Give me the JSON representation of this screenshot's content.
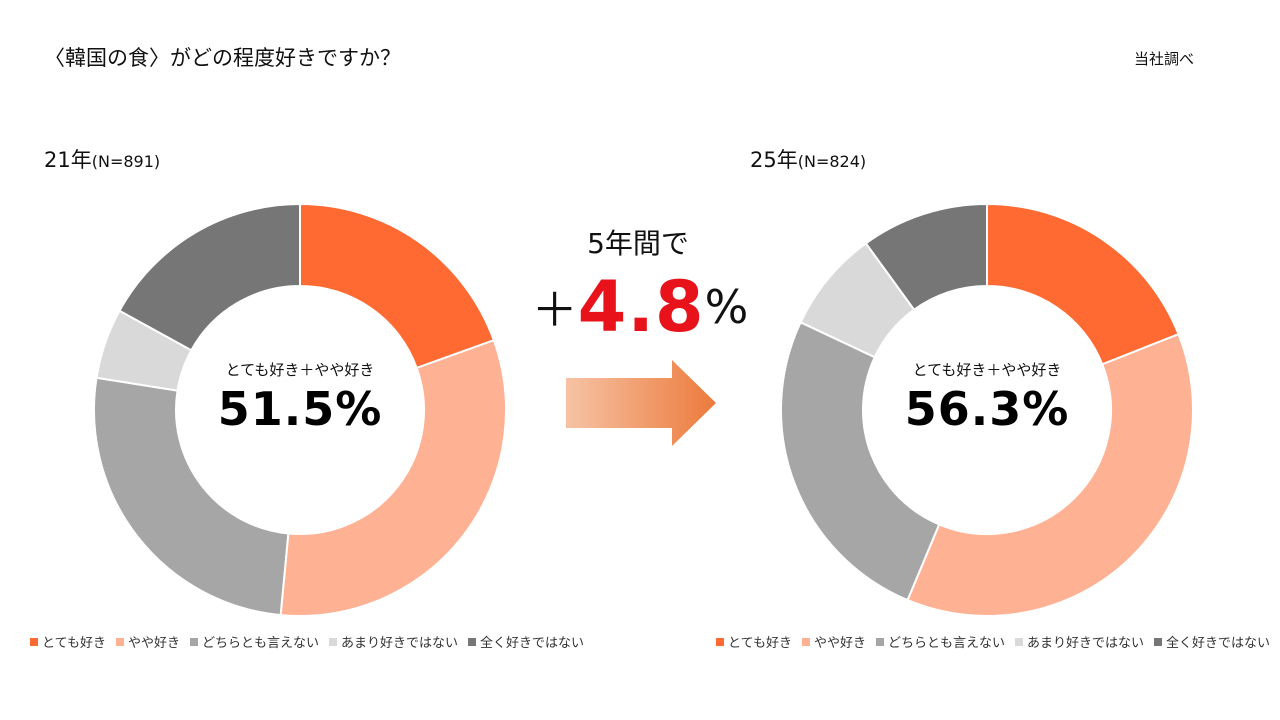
{
  "title": "〈韓国の食〉がどの程度好きですか？",
  "source": "当社調べ",
  "comparison": {
    "label": "5年間で",
    "sign": "＋",
    "value": "4.8",
    "unit": "%"
  },
  "chart_data": [
    {
      "type": "pie",
      "year_label": "21年",
      "n_label": "(N=891)",
      "center_caption": "とても好き＋やや好き",
      "center_value": "51.5%",
      "categories": [
        "とても好き",
        "やや好き",
        "どちらとも言えない",
        "あまり好きではない",
        "全く好きではない"
      ],
      "values": [
        19.5,
        32.0,
        26.0,
        5.5,
        17.0
      ],
      "colors": [
        "#ff6a33",
        "#ffb194",
        "#a6a6a6",
        "#d9d9d9",
        "#767676"
      ]
    },
    {
      "type": "pie",
      "year_label": "25年",
      "n_label": "(N=824)",
      "center_caption": "とても好き＋やや好き",
      "center_value": "56.3%",
      "categories": [
        "とても好き",
        "やや好き",
        "どちらとも言えない",
        "あまり好きではない",
        "全く好きではない"
      ],
      "values": [
        19.0,
        37.3,
        25.7,
        8.0,
        10.0
      ],
      "colors": [
        "#ff6a33",
        "#ffb194",
        "#a6a6a6",
        "#d9d9d9",
        "#767676"
      ]
    }
  ]
}
